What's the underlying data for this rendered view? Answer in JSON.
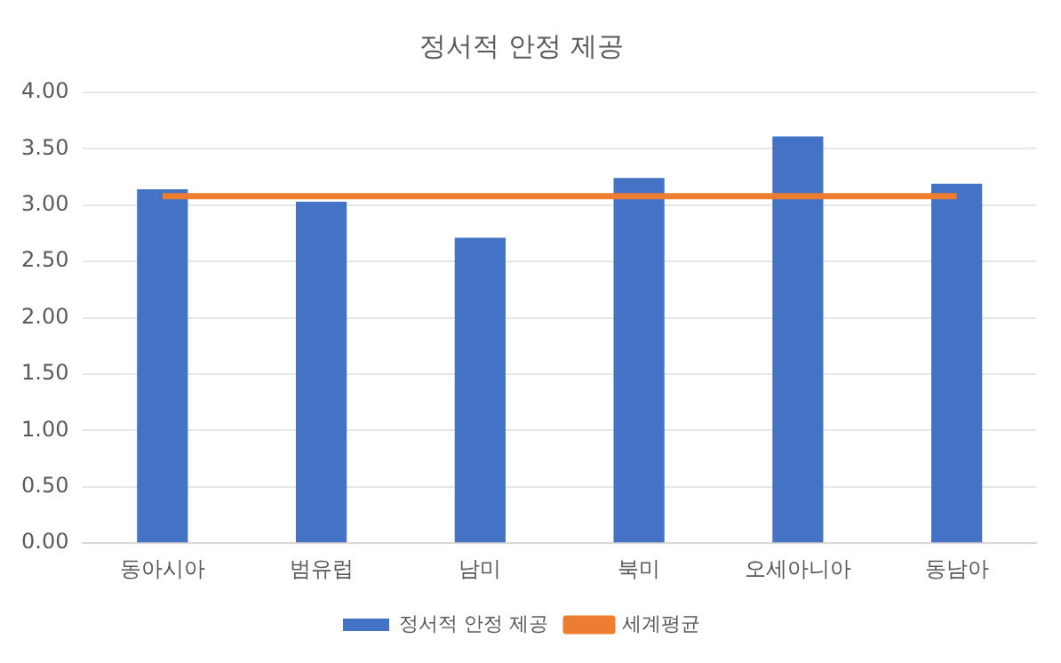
{
  "chart_data": {
    "type": "bar",
    "title": "정서적 안정 제공",
    "categories": [
      "동아시아",
      "범유럽",
      "남미",
      "북미",
      "오세아니아",
      "동남아"
    ],
    "series": [
      {
        "name": "정서적 안정 제공",
        "color": "#4472c4",
        "values": [
          3.14,
          3.03,
          2.71,
          3.24,
          3.61,
          3.19
        ]
      },
      {
        "name": "세계평균",
        "type": "line",
        "color": "#ed7d31",
        "values": [
          3.08,
          3.08,
          3.08,
          3.08,
          3.08,
          3.08
        ]
      }
    ],
    "ylim": [
      0,
      4
    ],
    "yticks": [
      {
        "value": 0,
        "label": "0.00"
      },
      {
        "value": 0.5,
        "label": "0.50"
      },
      {
        "value": 1,
        "label": "1.00"
      },
      {
        "value": 1.5,
        "label": "1.50"
      },
      {
        "value": 2,
        "label": "2.00"
      },
      {
        "value": 2.5,
        "label": "2.50"
      },
      {
        "value": 3,
        "label": "3.00"
      },
      {
        "value": 3.5,
        "label": "3.50"
      },
      {
        "value": 4,
        "label": "4.00"
      }
    ],
    "grid": "y",
    "legend": "bottom",
    "marker": "none"
  }
}
